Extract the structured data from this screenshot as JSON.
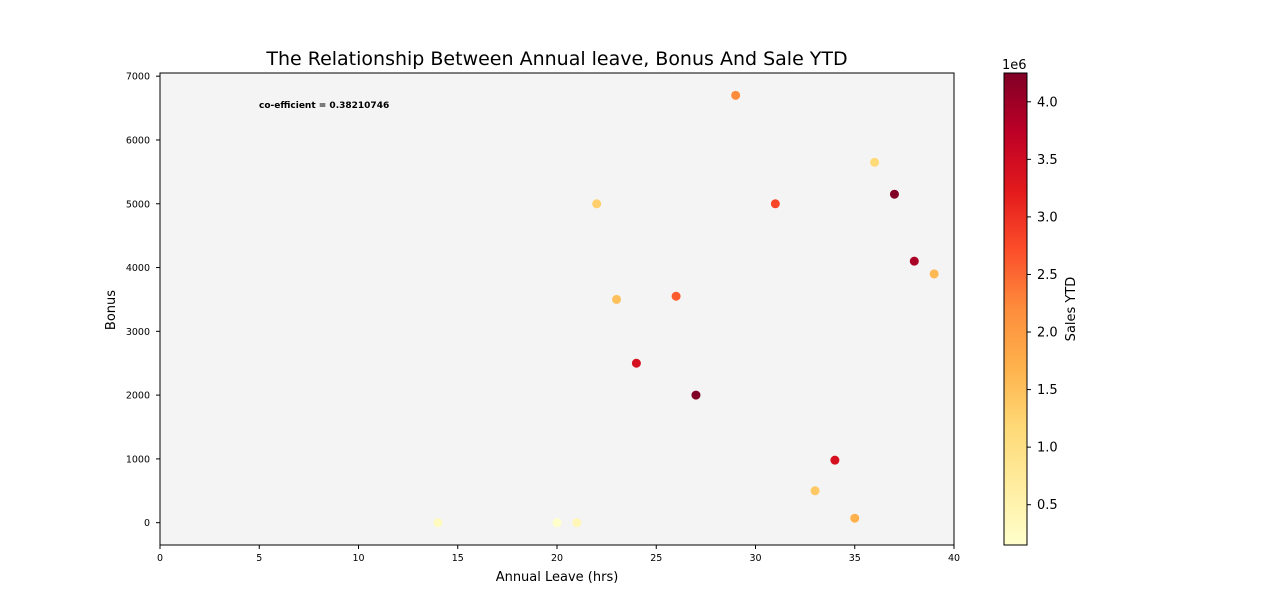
{
  "chart_data": {
    "type": "scatter",
    "title": "The Relationship Between Annual leave, Bonus And Sale YTD",
    "xlabel": "Annual Leave (hrs)",
    "ylabel": "Bonus",
    "xlim": [
      0,
      40
    ],
    "ylim": [
      -350,
      7050
    ],
    "x_ticks": [
      0,
      5,
      10,
      15,
      20,
      25,
      30,
      35,
      40
    ],
    "y_ticks": [
      0,
      1000,
      2000,
      3000,
      4000,
      5000,
      6000,
      7000
    ],
    "grid": false,
    "annotation": "co-efficient = 0.38210746",
    "colorbar": {
      "label": "Sales YTD",
      "exponent_label": "1e6",
      "colormap": "YlOrRd",
      "range": [
        150000,
        4250000
      ],
      "ticks": [
        0.5,
        1.0,
        1.5,
        2.0,
        2.5,
        3.0,
        3.5,
        4.0
      ],
      "tick_labels": [
        "0.5",
        "1.0",
        "1.5",
        "2.0",
        "2.5",
        "3.0",
        "3.5",
        "4.0"
      ]
    },
    "points": [
      {
        "x": 14,
        "y": 0,
        "sales": 300000
      },
      {
        "x": 20,
        "y": 0,
        "sales": 150000
      },
      {
        "x": 21,
        "y": 0,
        "sales": 400000
      },
      {
        "x": 22,
        "y": 5000,
        "sales": 1300000
      },
      {
        "x": 23,
        "y": 3500,
        "sales": 1500000
      },
      {
        "x": 24,
        "y": 2500,
        "sales": 3400000
      },
      {
        "x": 26,
        "y": 3550,
        "sales": 2600000
      },
      {
        "x": 27,
        "y": 2000,
        "sales": 4250000
      },
      {
        "x": 29,
        "y": 6700,
        "sales": 2200000
      },
      {
        "x": 31,
        "y": 5000,
        "sales": 2800000
      },
      {
        "x": 33,
        "y": 500,
        "sales": 1400000
      },
      {
        "x": 34,
        "y": 980,
        "sales": 3400000
      },
      {
        "x": 35,
        "y": 70,
        "sales": 1700000
      },
      {
        "x": 36,
        "y": 5650,
        "sales": 1150000
      },
      {
        "x": 37,
        "y": 5150,
        "sales": 4250000
      },
      {
        "x": 38,
        "y": 4100,
        "sales": 3900000
      },
      {
        "x": 39,
        "y": 3900,
        "sales": 1600000
      }
    ]
  }
}
